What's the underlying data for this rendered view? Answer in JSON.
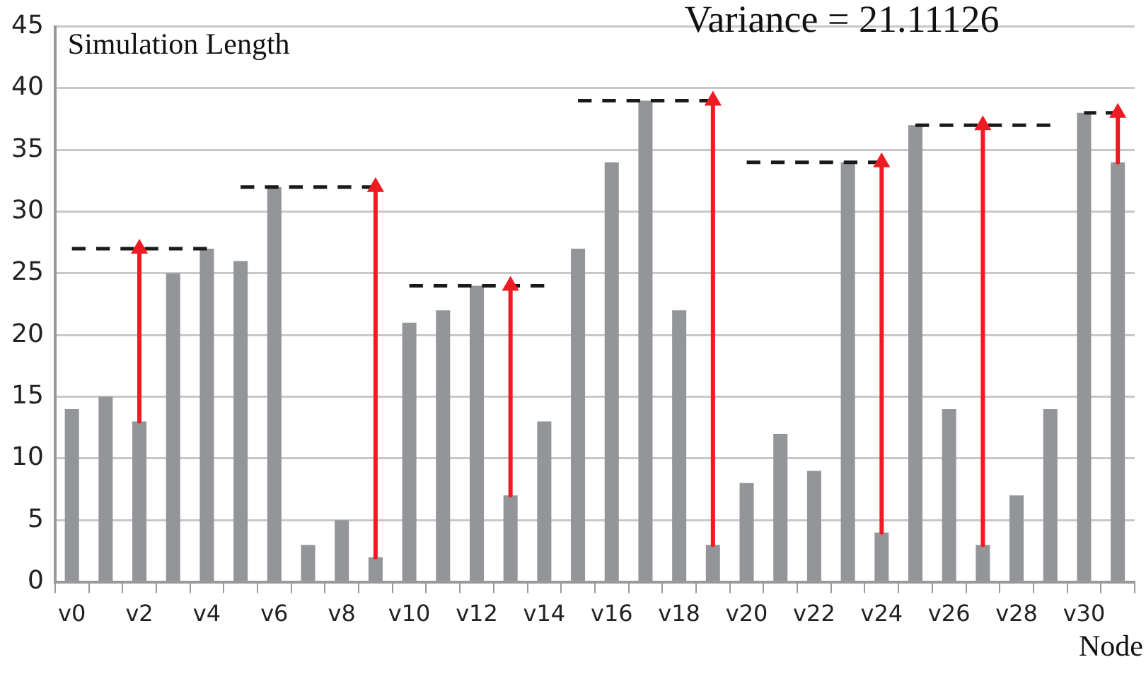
{
  "chart_data": {
    "type": "bar",
    "ylabel": "Simulation Length",
    "xlabel": "Node",
    "annotations": [
      "Variance = 21.11126"
    ],
    "categories": [
      "v0",
      null,
      "v2",
      null,
      "v4",
      null,
      "v6",
      null,
      "v8",
      null,
      "v10",
      null,
      "v12",
      null,
      "v14",
      null,
      "v16",
      null,
      "v18",
      null,
      "v20",
      null,
      "v22",
      null,
      "v24",
      null,
      "v26",
      null,
      "v28",
      null,
      "v30",
      null
    ],
    "series": [
      {
        "color": "#939598",
        "values": [
          14,
          15,
          13,
          25,
          27,
          26,
          32,
          3,
          5,
          2,
          21,
          22,
          24,
          7,
          13,
          27,
          34,
          39,
          22,
          3,
          8,
          12,
          9,
          34,
          4,
          37,
          14,
          3,
          7,
          14,
          38,
          34
        ]
      },
      {
        "type": "line",
        "color": "#1a1a1a",
        "line_style": "dashed",
        "marker": "none",
        "values": [
          27,
          27,
          27,
          27,
          27,
          null,
          null,
          null,
          null,
          null,
          null,
          null,
          null,
          null,
          null,
          null,
          null,
          null,
          null,
          null,
          null,
          null,
          null,
          null,
          null,
          null,
          null,
          null,
          null,
          null,
          null,
          null
        ]
      },
      {
        "type": "line",
        "color": "#1a1a1a",
        "line_style": "dashed",
        "marker": "none",
        "values": [
          null,
          null,
          null,
          null,
          null,
          32,
          32,
          32,
          32,
          32,
          null,
          null,
          null,
          null,
          null,
          null,
          null,
          null,
          null,
          null,
          null,
          null,
          null,
          null,
          null,
          null,
          null,
          null,
          null,
          null,
          null,
          null
        ]
      },
      {
        "type": "line",
        "color": "#1a1a1a",
        "line_style": "dashed",
        "marker": "none",
        "values": [
          null,
          null,
          null,
          null,
          null,
          null,
          null,
          null,
          null,
          null,
          24,
          24,
          24,
          24,
          24,
          null,
          null,
          null,
          null,
          null,
          null,
          null,
          null,
          null,
          null,
          null,
          null,
          null,
          null,
          null,
          null,
          null
        ]
      },
      {
        "type": "line",
        "color": "#1a1a1a",
        "line_style": "dashed",
        "marker": "none",
        "values": [
          null,
          null,
          null,
          null,
          null,
          null,
          null,
          null,
          null,
          null,
          null,
          null,
          null,
          null,
          null,
          39,
          39,
          39,
          39,
          39,
          null,
          null,
          null,
          null,
          null,
          null,
          null,
          null,
          null,
          null,
          null,
          null
        ]
      },
      {
        "type": "line",
        "color": "#1a1a1a",
        "line_style": "dashed",
        "marker": "none",
        "values": [
          null,
          null,
          null,
          null,
          null,
          null,
          null,
          null,
          null,
          null,
          null,
          null,
          null,
          null,
          null,
          null,
          null,
          null,
          null,
          null,
          34,
          34,
          34,
          34,
          34,
          null,
          null,
          null,
          null,
          null,
          null,
          null
        ]
      },
      {
        "type": "line",
        "color": "#1a1a1a",
        "line_style": "dashed",
        "marker": "none",
        "values": [
          null,
          null,
          null,
          null,
          null,
          null,
          null,
          null,
          null,
          null,
          null,
          null,
          null,
          null,
          null,
          null,
          null,
          null,
          null,
          null,
          null,
          null,
          null,
          null,
          null,
          37,
          37,
          37,
          37,
          37,
          null,
          null
        ]
      },
      {
        "type": "line",
        "color": "#1a1a1a",
        "line_style": "dashed",
        "marker": "none",
        "values": [
          null,
          null,
          null,
          null,
          null,
          null,
          null,
          null,
          null,
          null,
          null,
          null,
          null,
          null,
          null,
          null,
          null,
          null,
          null,
          null,
          null,
          null,
          null,
          null,
          null,
          null,
          null,
          null,
          null,
          null,
          38,
          38
        ]
      },
      {
        "type": "scatter",
        "color": "#ed1c24",
        "marker": "triangle",
        "values": [
          null,
          null,
          27,
          null,
          null,
          null,
          null,
          null,
          null,
          32,
          null,
          null,
          null,
          24,
          null,
          null,
          null,
          null,
          null,
          39,
          null,
          null,
          null,
          null,
          34,
          null,
          null,
          37,
          null,
          null,
          null,
          38
        ],
        "errors": [
          null,
          null,
          [
            13,
            27
          ],
          null,
          null,
          null,
          null,
          null,
          null,
          [
            2,
            32
          ],
          null,
          null,
          null,
          [
            7,
            24
          ],
          null,
          null,
          null,
          null,
          null,
          [
            3,
            39
          ],
          null,
          null,
          null,
          null,
          [
            4,
            34
          ],
          null,
          null,
          [
            3,
            37
          ],
          null,
          null,
          null,
          [
            34,
            38
          ]
        ]
      }
    ],
    "ylim": [
      0,
      45
    ],
    "yticks": [
      0,
      5,
      10,
      15,
      20,
      25,
      30,
      35,
      40,
      45
    ],
    "grid": "y",
    "legend": false
  }
}
